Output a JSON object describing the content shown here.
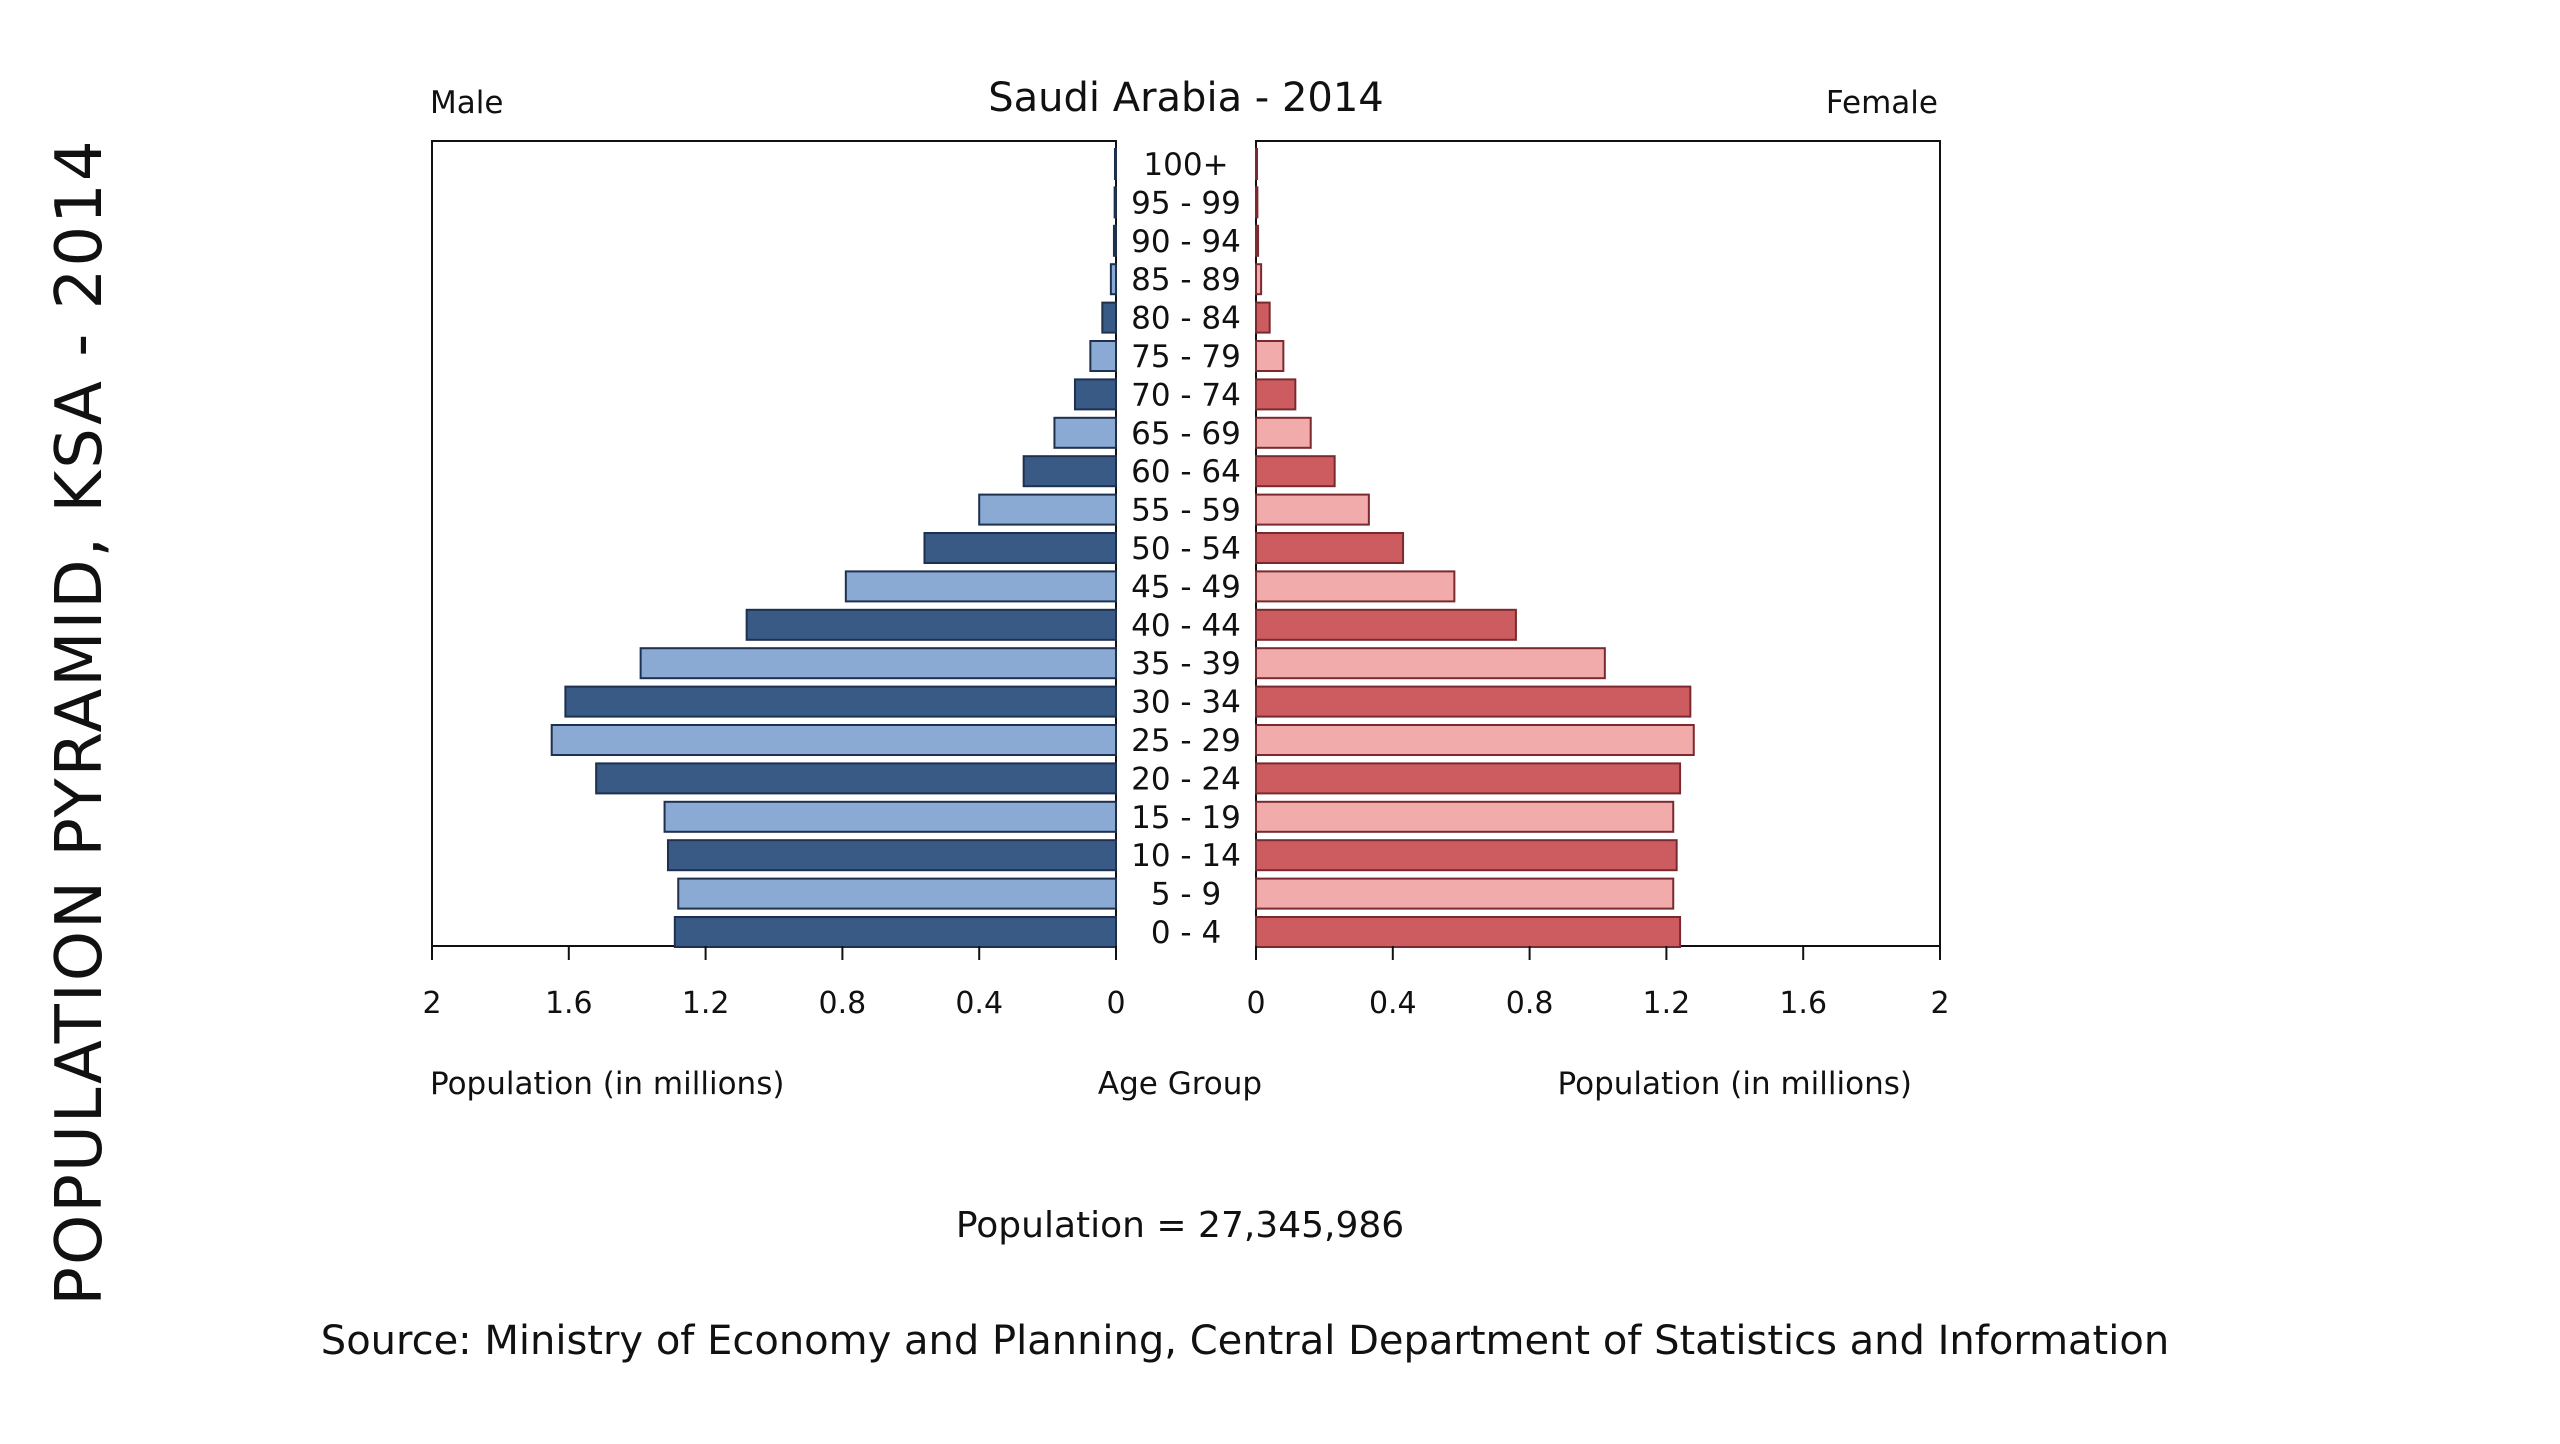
{
  "side_title": "POPULATION PYRAMID, KSA - 2014",
  "population_total": "Population = 27,345,986",
  "source": "Source: Ministry of Economy and Planning, Central Department of Statistics and Information",
  "chart_data": {
    "type": "bar",
    "orientation": "horizontal",
    "layout": "population-pyramid",
    "title": "Saudi Arabia - 2014",
    "left_label": "Male",
    "right_label": "Female",
    "xlabel_left": "Population (in millions)",
    "xlabel_center": "Age Group",
    "xlabel_right": "Population (in millions)",
    "xlim": [
      0,
      2
    ],
    "xticks": [
      0,
      0.4,
      0.8,
      1.2,
      1.6,
      2
    ],
    "xtick_labels_left": [
      "2",
      "1.6",
      "1.2",
      "0.8",
      "0.4",
      "0"
    ],
    "xtick_labels_right": [
      "0",
      "0.4",
      "0.8",
      "1.2",
      "1.6",
      "2"
    ],
    "categories": [
      "100+",
      "95 - 99",
      "90 - 94",
      "85 - 89",
      "80 - 84",
      "75 - 79",
      "70 - 74",
      "65 - 69",
      "60 - 64",
      "55 - 59",
      "50 - 54",
      "45 - 49",
      "40 - 44",
      "35 - 39",
      "30 - 34",
      "25 - 29",
      "20 - 24",
      "15 - 19",
      "10 - 14",
      "5 - 9",
      "0 - 4"
    ],
    "series": [
      {
        "name": "Male",
        "colors": [
          "#3a5a86",
          "#8aa9d3"
        ],
        "border": "#1e3050",
        "values": [
          0.003,
          0.004,
          0.006,
          0.015,
          0.04,
          0.075,
          0.12,
          0.18,
          0.27,
          0.4,
          0.56,
          0.79,
          1.08,
          1.39,
          1.61,
          1.65,
          1.52,
          1.32,
          1.31,
          1.28,
          1.29
        ]
      },
      {
        "name": "Female",
        "colors": [
          "#cd5c61",
          "#f2abab"
        ],
        "border": "#7a2a2f",
        "values": [
          0.003,
          0.004,
          0.006,
          0.015,
          0.04,
          0.08,
          0.115,
          0.16,
          0.23,
          0.33,
          0.43,
          0.58,
          0.76,
          1.02,
          1.27,
          1.28,
          1.24,
          1.22,
          1.23,
          1.22,
          1.24
        ]
      }
    ]
  }
}
